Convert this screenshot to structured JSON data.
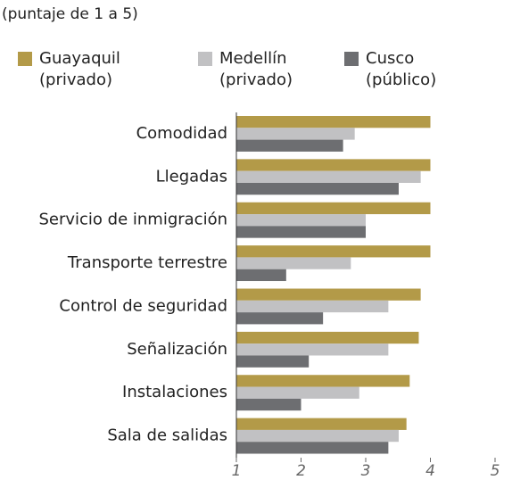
{
  "chart_data": {
    "type": "barh",
    "subtitle": "(puntaje de 1 a 5)",
    "categories": [
      "Comodidad",
      "Llegadas",
      "Servicio de inmigración",
      "Transporte terrestre",
      "Control de seguridad",
      "Señalización",
      "Instalaciones",
      "Sala de salidas"
    ],
    "series": [
      {
        "name": "Guayaquil (privado)",
        "color": "#b39a48",
        "values": [
          4.0,
          4.0,
          4.0,
          4.0,
          3.85,
          3.82,
          3.68,
          3.63
        ]
      },
      {
        "name": "Medellín (privado)",
        "color": "#c1c1c3",
        "values": [
          2.83,
          3.85,
          3.0,
          2.77,
          3.35,
          3.35,
          2.9,
          3.51
        ]
      },
      {
        "name": "Cusco (público)",
        "color": "#6d6e71",
        "values": [
          2.65,
          3.51,
          3.0,
          1.77,
          2.34,
          2.12,
          2.0,
          3.35
        ]
      }
    ],
    "xlim": [
      1,
      5
    ],
    "xticks": [
      1,
      2,
      3,
      4,
      5
    ]
  }
}
